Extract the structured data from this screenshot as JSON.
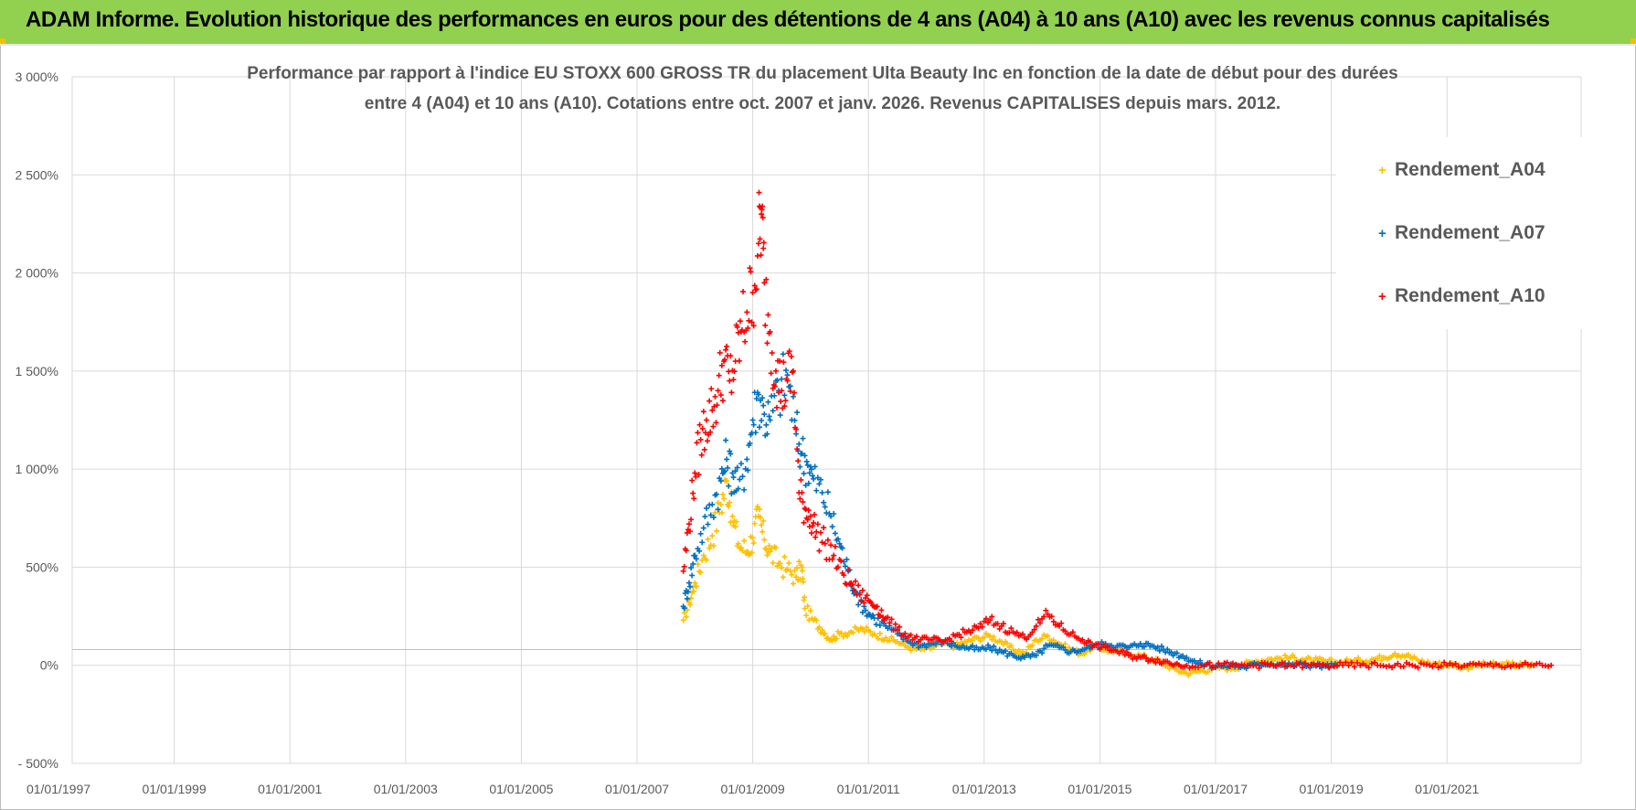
{
  "banner": {
    "title": "ADAM Informe. Evolution historique des performances en euros pour des détentions de 4 ans (A04) à 10 ans (A10) avec les revenus connus capitalisés"
  },
  "chart_data": {
    "type": "scatter",
    "title_line1": "Performance par rapport à l'indice EU STOXX 600 GROSS TR  du placement Ulta Beauty Inc en fonction de la date de début pour des durées",
    "title_line2": "entre 4 (A04) et 10 ans (A10).  Cotations entre oct. 2007 et janv. 2026.  Revenus CAPITALISES depuis mars. 2012.",
    "xlabel": "",
    "ylabel": "",
    "xlim": [
      1997.0,
      2023.0
    ],
    "ylim": [
      -500,
      3000
    ],
    "x_ticks": [
      1997,
      1999,
      2001,
      2003,
      2005,
      2007,
      2009,
      2011,
      2013,
      2015,
      2017,
      2019,
      2021
    ],
    "x_tick_labels": [
      "01/01/1997",
      "01/01/1999",
      "01/01/2001",
      "01/01/2003",
      "01/01/2005",
      "01/01/2007",
      "01/01/2009",
      "01/01/2011",
      "01/01/2013",
      "01/01/2015",
      "01/01/2017",
      "01/01/2019",
      "01/01/2021"
    ],
    "y_ticks": [
      -500,
      0,
      500,
      1000,
      1500,
      2000,
      2500,
      3000
    ],
    "y_tick_labels": [
      "- 500%",
      "0%",
      "500%",
      "1 000%",
      "1 500%",
      "2 000%",
      "2 500%",
      "3 000%"
    ],
    "grid": true,
    "legend_position": "top-right",
    "marker": "+",
    "series": [
      {
        "name": "Rendement_A04",
        "color": "#ffc000",
        "points": [
          [
            2007.8,
            230
          ],
          [
            2007.9,
            320
          ],
          [
            2008.0,
            420
          ],
          [
            2008.15,
            560
          ],
          [
            2008.3,
            660
          ],
          [
            2008.45,
            820
          ],
          [
            2008.55,
            940
          ],
          [
            2008.65,
            760
          ],
          [
            2008.75,
            620
          ],
          [
            2008.9,
            580
          ],
          [
            2009.0,
            650
          ],
          [
            2009.1,
            760
          ],
          [
            2009.2,
            640
          ],
          [
            2009.3,
            580
          ],
          [
            2009.45,
            520
          ],
          [
            2009.6,
            490
          ],
          [
            2009.75,
            450
          ],
          [
            2009.85,
            500
          ],
          [
            2009.9,
            290
          ],
          [
            2010.05,
            230
          ],
          [
            2010.2,
            180
          ],
          [
            2010.35,
            130
          ],
          [
            2010.5,
            160
          ],
          [
            2010.7,
            170
          ],
          [
            2010.9,
            185
          ],
          [
            2011.1,
            160
          ],
          [
            2011.3,
            140
          ],
          [
            2011.5,
            120
          ],
          [
            2011.7,
            90
          ],
          [
            2011.9,
            80
          ],
          [
            2012.1,
            90
          ],
          [
            2012.3,
            110
          ],
          [
            2012.5,
            100
          ],
          [
            2012.7,
            120
          ],
          [
            2012.9,
            140
          ],
          [
            2013.1,
            150
          ],
          [
            2013.3,
            120
          ],
          [
            2013.5,
            80
          ],
          [
            2013.7,
            60
          ],
          [
            2013.9,
            130
          ],
          [
            2014.1,
            150
          ],
          [
            2014.3,
            110
          ],
          [
            2014.5,
            80
          ],
          [
            2014.7,
            60
          ],
          [
            2014.9,
            100
          ],
          [
            2015.1,
            80
          ],
          [
            2015.3,
            70
          ],
          [
            2015.5,
            60
          ],
          [
            2015.7,
            50
          ],
          [
            2015.9,
            30
          ],
          [
            2016.1,
            10
          ],
          [
            2016.3,
            -20
          ],
          [
            2016.5,
            -40
          ],
          [
            2016.7,
            -30
          ],
          [
            2016.9,
            -20
          ],
          [
            2017.1,
            -10
          ],
          [
            2017.3,
            -15
          ],
          [
            2017.5,
            5
          ],
          [
            2017.7,
            20
          ],
          [
            2017.9,
            30
          ],
          [
            2018.1,
            35
          ],
          [
            2018.3,
            40
          ],
          [
            2018.5,
            30
          ],
          [
            2018.7,
            25
          ],
          [
            2018.9,
            20
          ],
          [
            2019.1,
            15
          ],
          [
            2019.3,
            20
          ],
          [
            2019.5,
            25
          ],
          [
            2019.7,
            30
          ],
          [
            2019.9,
            40
          ],
          [
            2020.1,
            60
          ],
          [
            2020.3,
            50
          ],
          [
            2020.5,
            25
          ],
          [
            2020.7,
            10
          ],
          [
            2020.9,
            5
          ],
          [
            2021.1,
            5
          ],
          [
            2021.3,
            -10
          ],
          [
            2021.5,
            0
          ],
          [
            2021.7,
            5
          ],
          [
            2021.9,
            0
          ],
          [
            2022.1,
            5
          ],
          [
            2022.3,
            0
          ],
          [
            2022.5,
            0
          ]
        ]
      },
      {
        "name": "Rendement_A07",
        "color": "#0070c0",
        "points": [
          [
            2007.8,
            300
          ],
          [
            2007.9,
            420
          ],
          [
            2008.0,
            560
          ],
          [
            2008.15,
            700
          ],
          [
            2008.3,
            820
          ],
          [
            2008.45,
            940
          ],
          [
            2008.55,
            1050
          ],
          [
            2008.65,
            980
          ],
          [
            2008.75,
            900
          ],
          [
            2008.9,
            1050
          ],
          [
            2009.0,
            1250
          ],
          [
            2009.1,
            1380
          ],
          [
            2009.2,
            1280
          ],
          [
            2009.3,
            1250
          ],
          [
            2009.45,
            1400
          ],
          [
            2009.6,
            1480
          ],
          [
            2009.75,
            1180
          ],
          [
            2009.85,
            1080
          ],
          [
            2009.95,
            1020
          ],
          [
            2010.05,
            950
          ],
          [
            2010.2,
            880
          ],
          [
            2010.35,
            760
          ],
          [
            2010.5,
            620
          ],
          [
            2010.65,
            480
          ],
          [
            2010.8,
            360
          ],
          [
            2010.95,
            280
          ],
          [
            2011.1,
            240
          ],
          [
            2011.3,
            200
          ],
          [
            2011.5,
            160
          ],
          [
            2011.7,
            120
          ],
          [
            2011.9,
            100
          ],
          [
            2012.1,
            110
          ],
          [
            2012.3,
            120
          ],
          [
            2012.5,
            100
          ],
          [
            2012.7,
            90
          ],
          [
            2012.9,
            80
          ],
          [
            2013.1,
            90
          ],
          [
            2013.3,
            70
          ],
          [
            2013.5,
            50
          ],
          [
            2013.7,
            40
          ],
          [
            2013.9,
            50
          ],
          [
            2014.1,
            100
          ],
          [
            2014.3,
            90
          ],
          [
            2014.5,
            70
          ],
          [
            2014.7,
            80
          ],
          [
            2014.9,
            100
          ],
          [
            2015.1,
            110
          ],
          [
            2015.3,
            100
          ],
          [
            2015.5,
            90
          ],
          [
            2015.7,
            110
          ],
          [
            2015.9,
            100
          ],
          [
            2016.1,
            80
          ],
          [
            2016.3,
            60
          ],
          [
            2016.5,
            40
          ],
          [
            2016.7,
            10
          ],
          [
            2016.9,
            0
          ],
          [
            2017.1,
            -5
          ],
          [
            2017.3,
            0
          ],
          [
            2017.5,
            -10
          ],
          [
            2017.7,
            5
          ],
          [
            2017.9,
            10
          ],
          [
            2018.1,
            5
          ],
          [
            2018.3,
            0
          ],
          [
            2018.5,
            5
          ],
          [
            2018.7,
            0
          ],
          [
            2018.9,
            -5
          ],
          [
            2019.1,
            0
          ]
        ]
      },
      {
        "name": "Rendement_A10",
        "color": "#ff0000",
        "points": [
          [
            2007.8,
            480
          ],
          [
            2007.9,
            720
          ],
          [
            2008.0,
            980
          ],
          [
            2008.1,
            1150
          ],
          [
            2008.2,
            1250
          ],
          [
            2008.3,
            1300
          ],
          [
            2008.4,
            1400
          ],
          [
            2008.5,
            1550
          ],
          [
            2008.6,
            1450
          ],
          [
            2008.7,
            1550
          ],
          [
            2008.8,
            1700
          ],
          [
            2008.9,
            1800
          ],
          [
            2009.0,
            1900
          ],
          [
            2009.1,
            2150
          ],
          [
            2009.15,
            2300
          ],
          [
            2009.2,
            1950
          ],
          [
            2009.3,
            1700
          ],
          [
            2009.4,
            1500
          ],
          [
            2009.5,
            1400
          ],
          [
            2009.6,
            1450
          ],
          [
            2009.7,
            1500
          ],
          [
            2009.8,
            880
          ],
          [
            2009.9,
            800
          ],
          [
            2010.0,
            760
          ],
          [
            2010.1,
            680
          ],
          [
            2010.25,
            620
          ],
          [
            2010.4,
            560
          ],
          [
            2010.55,
            470
          ],
          [
            2010.7,
            420
          ],
          [
            2010.85,
            360
          ],
          [
            2011.0,
            330
          ],
          [
            2011.15,
            300
          ],
          [
            2011.3,
            240
          ],
          [
            2011.5,
            180
          ],
          [
            2011.7,
            150
          ],
          [
            2011.9,
            130
          ],
          [
            2012.1,
            130
          ],
          [
            2012.3,
            120
          ],
          [
            2012.5,
            150
          ],
          [
            2012.7,
            170
          ],
          [
            2012.9,
            190
          ],
          [
            2013.1,
            230
          ],
          [
            2013.3,
            200
          ],
          [
            2013.5,
            170
          ],
          [
            2013.7,
            140
          ],
          [
            2013.9,
            200
          ],
          [
            2014.1,
            260
          ],
          [
            2014.3,
            200
          ],
          [
            2014.5,
            160
          ],
          [
            2014.7,
            130
          ],
          [
            2014.9,
            100
          ],
          [
            2015.1,
            90
          ],
          [
            2015.3,
            70
          ],
          [
            2015.5,
            50
          ],
          [
            2015.7,
            40
          ],
          [
            2015.9,
            30
          ],
          [
            2016.1,
            20
          ],
          [
            2016.3,
            5
          ],
          [
            2016.5,
            0
          ],
          [
            2016.8,
            0
          ],
          [
            2017.1,
            0
          ],
          [
            2017.4,
            0
          ],
          [
            2017.7,
            0
          ],
          [
            2018.0,
            0
          ],
          [
            2018.3,
            0
          ],
          [
            2018.6,
            0
          ],
          [
            2018.9,
            0
          ],
          [
            2019.2,
            0
          ],
          [
            2019.5,
            0
          ],
          [
            2019.8,
            0
          ],
          [
            2020.1,
            0
          ],
          [
            2020.4,
            0
          ],
          [
            2020.7,
            0
          ],
          [
            2021.0,
            0
          ],
          [
            2021.3,
            0
          ],
          [
            2021.6,
            0
          ],
          [
            2021.9,
            0
          ],
          [
            2022.2,
            0
          ],
          [
            2022.5,
            0
          ],
          [
            2022.8,
            0
          ]
        ]
      }
    ]
  }
}
